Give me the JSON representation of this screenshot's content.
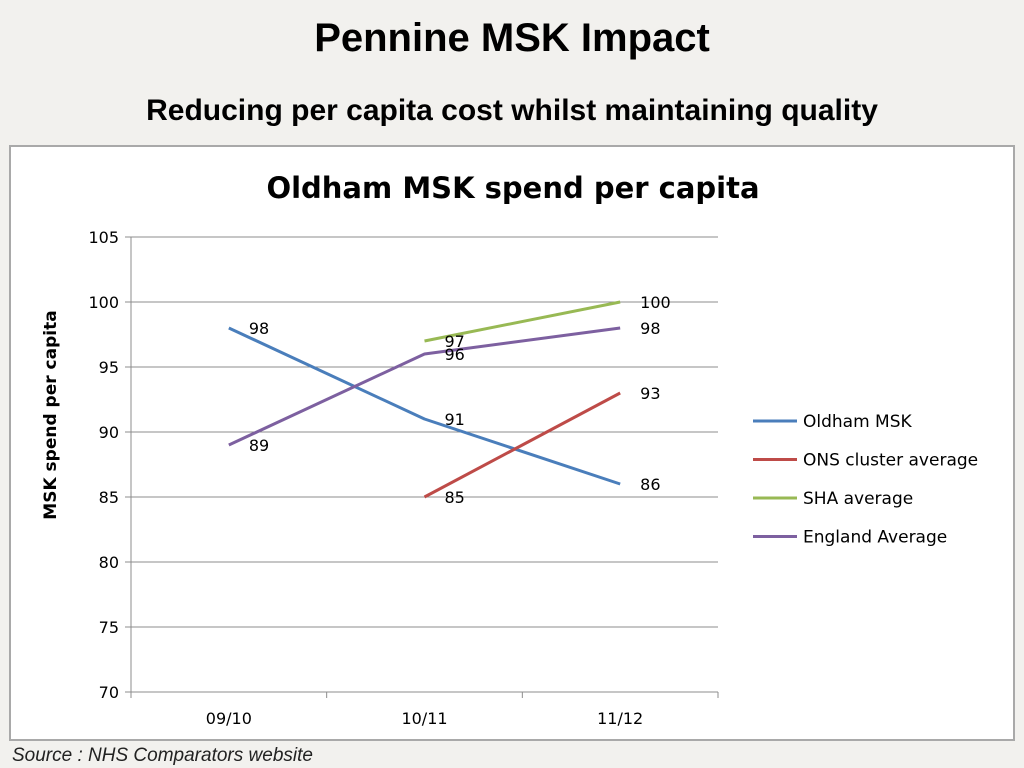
{
  "slide": {
    "title": "Pennine MSK Impact",
    "subtitle": "Reducing per capita cost whilst maintaining quality",
    "source": "Source : NHS Comparators website"
  },
  "chart_data": {
    "type": "line",
    "title": "Oldham MSK spend per capita",
    "xlabel": "",
    "ylabel": "MSK spend per capita",
    "categories": [
      "09/10",
      "10/11",
      "11/12"
    ],
    "ylim": [
      70,
      105
    ],
    "yticks": [
      70,
      75,
      80,
      85,
      90,
      95,
      100,
      105
    ],
    "grid": true,
    "legend_position": "right",
    "series": [
      {
        "name": "Oldham MSK",
        "color": "#4a7ebb",
        "values": [
          98,
          91,
          86
        ]
      },
      {
        "name": "ONS cluster average",
        "color": "#be4b48",
        "values": [
          null,
          85,
          93
        ]
      },
      {
        "name": "SHA average",
        "color": "#98b954",
        "values": [
          null,
          97,
          100
        ]
      },
      {
        "name": "England Average",
        "color": "#7d60a0",
        "values": [
          89,
          96,
          98
        ]
      }
    ]
  }
}
